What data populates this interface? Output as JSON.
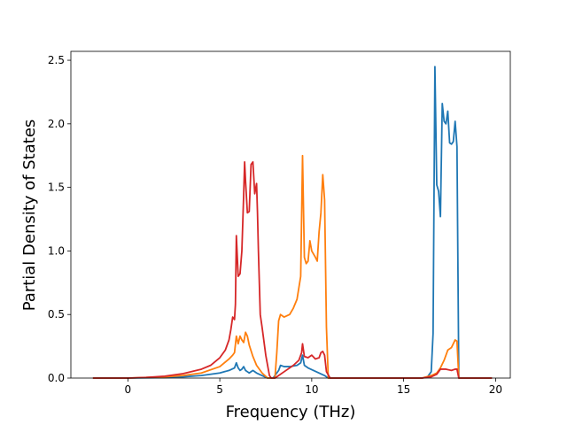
{
  "chart_data": {
    "type": "line",
    "title": "",
    "xlabel": "Frequency (THz)",
    "ylabel": "Partial Density of States",
    "xlim": [
      -3.1,
      20.8
    ],
    "ylim": [
      0,
      2.57
    ],
    "xticks": [
      0,
      5,
      10,
      15,
      20
    ],
    "xtick_labels": [
      "0",
      "5",
      "10",
      "15",
      "20"
    ],
    "yticks": [
      0.0,
      0.5,
      1.0,
      1.5,
      2.0,
      2.5
    ],
    "ytick_labels": [
      "0.0",
      "0.5",
      "1.0",
      "1.5",
      "2.0",
      "2.5"
    ],
    "grid": false,
    "legend": "none",
    "series": [
      {
        "color": "#1f77b4",
        "x": [
          -1.9,
          0,
          2,
          3,
          4,
          5,
          5.5,
          5.8,
          5.9,
          6.0,
          6.1,
          6.2,
          6.3,
          6.4,
          6.5,
          6.6,
          6.8,
          7.0,
          7.3,
          7.6,
          7.9,
          8.2,
          8.3,
          8.5,
          8.8,
          9.2,
          9.4,
          9.5,
          9.6,
          9.8,
          10.1,
          10.4,
          10.7,
          10.9,
          11.0,
          12,
          14,
          16,
          16.3,
          16.5,
          16.6,
          16.7,
          16.8,
          16.9,
          17.0,
          17.1,
          17.2,
          17.3,
          17.4,
          17.5,
          17.6,
          17.7,
          17.8,
          17.9,
          18.0,
          18.5,
          19.8
        ],
        "values": [
          0,
          0,
          0.004,
          0.01,
          0.02,
          0.04,
          0.06,
          0.08,
          0.12,
          0.08,
          0.06,
          0.07,
          0.09,
          0.06,
          0.05,
          0.04,
          0.06,
          0.04,
          0.02,
          0.0,
          0.0,
          0.06,
          0.1,
          0.09,
          0.09,
          0.1,
          0.12,
          0.18,
          0.1,
          0.08,
          0.06,
          0.04,
          0.02,
          0.0,
          0.0,
          0,
          0,
          0,
          0.01,
          0.05,
          0.35,
          2.45,
          1.52,
          1.47,
          1.27,
          2.16,
          2.02,
          2.0,
          2.1,
          1.85,
          1.84,
          1.86,
          2.02,
          1.82,
          0.0,
          0,
          0
        ]
      },
      {
        "color": "#ff7f0e",
        "x": [
          -1.9,
          0,
          2,
          3,
          4,
          5,
          5.5,
          5.7,
          5.8,
          5.9,
          6.0,
          6.1,
          6.2,
          6.3,
          6.4,
          6.5,
          6.6,
          6.8,
          7.0,
          7.3,
          7.6,
          7.9,
          8.0,
          8.1,
          8.2,
          8.3,
          8.5,
          8.8,
          9.0,
          9.2,
          9.4,
          9.5,
          9.6,
          9.7,
          9.8,
          9.9,
          10.0,
          10.2,
          10.3,
          10.4,
          10.5,
          10.6,
          10.7,
          10.8,
          10.9,
          11.0,
          12,
          14,
          16,
          16.5,
          16.8,
          17.0,
          17.2,
          17.4,
          17.6,
          17.8,
          17.9,
          18.0,
          18.5,
          19.8
        ],
        "values": [
          0,
          0,
          0.01,
          0.02,
          0.04,
          0.09,
          0.15,
          0.18,
          0.2,
          0.33,
          0.27,
          0.33,
          0.3,
          0.28,
          0.36,
          0.33,
          0.26,
          0.17,
          0.1,
          0.04,
          0.0,
          0.0,
          0.0,
          0.2,
          0.45,
          0.5,
          0.48,
          0.5,
          0.55,
          0.62,
          0.8,
          1.75,
          0.95,
          0.9,
          0.92,
          1.08,
          1.0,
          0.95,
          0.92,
          1.15,
          1.3,
          1.6,
          1.4,
          0.4,
          0.0,
          0.0,
          0,
          0,
          0,
          0.02,
          0.04,
          0.08,
          0.14,
          0.22,
          0.24,
          0.3,
          0.29,
          0.0,
          0,
          0
        ]
      },
      {
        "color": "#d62728",
        "x": [
          -1.9,
          0,
          1,
          2,
          3,
          4,
          4.5,
          5,
          5.3,
          5.5,
          5.6,
          5.7,
          5.8,
          5.85,
          5.9,
          6.0,
          6.1,
          6.2,
          6.3,
          6.35,
          6.4,
          6.5,
          6.6,
          6.7,
          6.8,
          6.9,
          7.0,
          7.05,
          7.1,
          7.2,
          7.3,
          7.5,
          7.7,
          7.8,
          8.0,
          8.2,
          8.5,
          9.0,
          9.3,
          9.45,
          9.5,
          9.6,
          9.8,
          10.0,
          10.2,
          10.4,
          10.5,
          10.6,
          10.7,
          10.8,
          11.0,
          12,
          14,
          16,
          16.5,
          16.8,
          17.0,
          17.3,
          17.6,
          17.8,
          17.9,
          18.0,
          18.5,
          19.8
        ],
        "values": [
          0,
          0,
          0.005,
          0.015,
          0.035,
          0.07,
          0.1,
          0.16,
          0.22,
          0.3,
          0.38,
          0.48,
          0.46,
          0.58,
          1.12,
          0.8,
          0.82,
          1.0,
          1.45,
          1.7,
          1.55,
          1.3,
          1.31,
          1.68,
          1.7,
          1.45,
          1.53,
          1.3,
          1.0,
          0.5,
          0.4,
          0.18,
          0.02,
          0.0,
          0.0,
          0.02,
          0.05,
          0.1,
          0.14,
          0.2,
          0.27,
          0.17,
          0.16,
          0.18,
          0.15,
          0.16,
          0.2,
          0.21,
          0.18,
          0.05,
          0.0,
          0,
          0,
          0,
          0.01,
          0.03,
          0.07,
          0.07,
          0.06,
          0.07,
          0.07,
          0.0,
          0,
          0
        ]
      }
    ]
  }
}
